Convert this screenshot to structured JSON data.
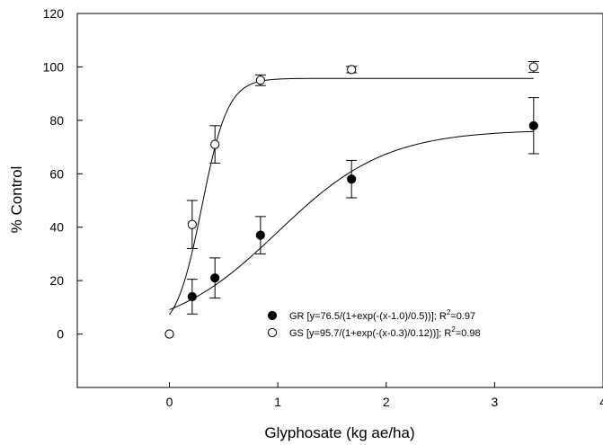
{
  "chart_data": {
    "type": "scatter",
    "xlabel": "Glyphosate (kg ae/ha)",
    "ylabel": "% Control",
    "xlim": [
      -0.85,
      4
    ],
    "ylim": [
      -20,
      120
    ],
    "xticks": [
      "0",
      "1",
      "2",
      "3",
      "4"
    ],
    "yticks": [
      "0",
      "20",
      "40",
      "60",
      "80",
      "100",
      "120"
    ],
    "grid": false,
    "legend_position": "lower-right",
    "series": [
      {
        "name": "GR",
        "marker": "filled-circle",
        "color": "#000000",
        "legend_text": "GR [y=76.5/(1+exp(-(x-1.0)/0.5))]; R",
        "legend_sup": "2",
        "legend_tail": "=0.97",
        "x": [
          0,
          0.21,
          0.42,
          0.84,
          1.68,
          3.36
        ],
        "y": [
          0,
          14,
          21,
          37,
          58,
          78
        ],
        "error": [
          0,
          6.5,
          7.5,
          7,
          7,
          10.5
        ],
        "fit": {
          "a": 76.5,
          "x0": 1.0,
          "b": 0.5
        }
      },
      {
        "name": "GS",
        "marker": "open-circle",
        "color": "#000000",
        "legend_text": "GS [y=95.7/(1+exp(-(x-0.3)/0.12))]; R",
        "legend_sup": "2",
        "legend_tail": "=0.98",
        "x": [
          0,
          0.21,
          0.42,
          0.84,
          1.68,
          3.36
        ],
        "y": [
          0,
          41,
          71,
          95,
          99,
          100
        ],
        "error": [
          0,
          9,
          7,
          2,
          1.2,
          2
        ],
        "fit": {
          "a": 95.7,
          "x0": 0.3,
          "b": 0.12
        }
      }
    ]
  }
}
